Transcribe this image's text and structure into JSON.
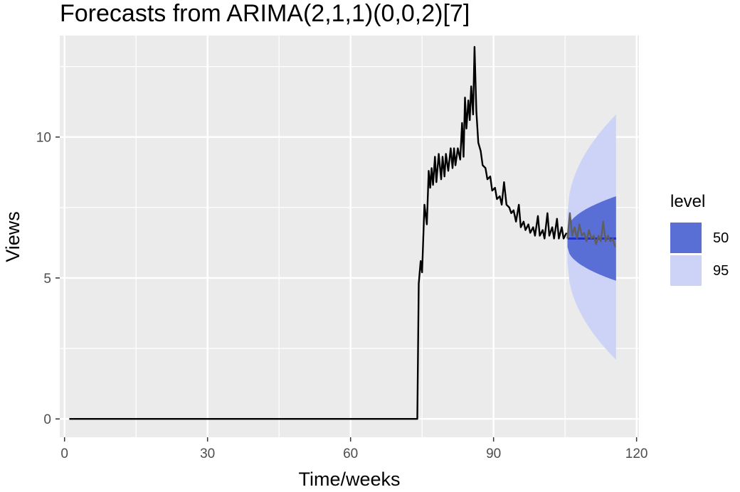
{
  "chart_data": {
    "type": "line",
    "title": "Forecasts from ARIMA(2,1,1)(0,0,2)[7]",
    "xlabel": "Time/weeks",
    "ylabel": "Views",
    "xlim": [
      -1,
      120.5
    ],
    "ylim": [
      -0.65,
      13.6
    ],
    "xticks": [
      0,
      30,
      60,
      90,
      120
    ],
    "yticks": [
      0,
      5,
      10
    ],
    "grid": true,
    "legend": {
      "title": "level",
      "position": "right",
      "entries": [
        {
          "label": "50",
          "color": "#5a6fd6"
        },
        {
          "label": "95",
          "color": "#cdd3f7"
        }
      ]
    },
    "colors": {
      "panel": "#ebebeb",
      "grid_major": "#ffffff",
      "series": "#000000",
      "forecast_mean": "#1f2fc9",
      "overlay": "#5f5f5f"
    },
    "series": [
      {
        "name": "",
        "x": [
          1,
          74,
          74.3,
          74.7,
          75,
          75.5,
          76,
          76.4,
          76.7,
          77,
          77.3,
          77.7,
          78,
          78.5,
          79,
          79.3,
          79.7,
          80,
          80.5,
          81,
          81.4,
          81.7,
          82,
          82.5,
          83,
          83.4,
          83.7,
          84,
          84.3,
          84.7,
          85,
          85.3,
          85.7,
          86,
          86.4,
          86.8,
          87.3,
          87.7,
          88.3,
          88.7,
          89.3,
          89.7,
          90.3,
          90.7,
          91.3,
          91.7,
          92.2,
          92.7,
          93.3,
          93.7,
          94.2,
          94.7,
          95.3,
          95.7,
          96.3,
          96.7,
          97.3,
          97.7,
          98.3,
          98.7,
          99.3,
          99.7,
          100.3,
          100.7,
          101.3,
          101.7,
          102.3,
          102.7,
          103.3,
          103.7,
          104.3,
          104.7,
          105.3
        ],
        "y": [
          0,
          0,
          4.8,
          5.6,
          5.2,
          7.6,
          6.9,
          8.8,
          8.2,
          8.9,
          8.3,
          9.3,
          8.4,
          9.4,
          8.5,
          9.3,
          8.6,
          9.4,
          8.8,
          9.6,
          8.9,
          9.6,
          9.0,
          9.6,
          9.2,
          10.5,
          9.3,
          11.4,
          10.3,
          11.3,
          10.6,
          11.8,
          10.8,
          13.2,
          10.9,
          9.8,
          9.5,
          9.0,
          8.9,
          8.5,
          8.6,
          8.1,
          8.2,
          7.8,
          7.9,
          7.6,
          8.4,
          7.6,
          7.5,
          7.3,
          7.4,
          7.0,
          7.6,
          6.8,
          7.0,
          6.7,
          6.9,
          6.6,
          6.8,
          6.5,
          7.2,
          6.5,
          6.7,
          6.4,
          7.3,
          6.5,
          6.8,
          6.4,
          7.1,
          6.4,
          6.8,
          6.4,
          6.6
        ]
      },
      {
        "name": "",
        "x": [
          105.5,
          106,
          106.5,
          107,
          107.5,
          108,
          108.5,
          109,
          109.5,
          110,
          110.5,
          111,
          111.5,
          112,
          112.5,
          113,
          113.5,
          114,
          114.5,
          115,
          115.5
        ],
        "y": [
          6.4,
          7.3,
          6.5,
          6.8,
          6.4,
          6.9,
          6.5,
          6.6,
          6.3,
          6.7,
          6.4,
          6.5,
          6.2,
          6.5,
          6.3,
          7.0,
          6.3,
          6.5,
          6.3,
          6.4,
          6.1
        ]
      }
    ],
    "forecast": {
      "x_start": 105.5,
      "x_end": 115.7,
      "mean": 6.4,
      "interval_50": {
        "lower_end": 4.9,
        "upper_end": 7.9
      },
      "interval_95": {
        "lower_end": 2.1,
        "upper_end": 10.8
      }
    }
  }
}
